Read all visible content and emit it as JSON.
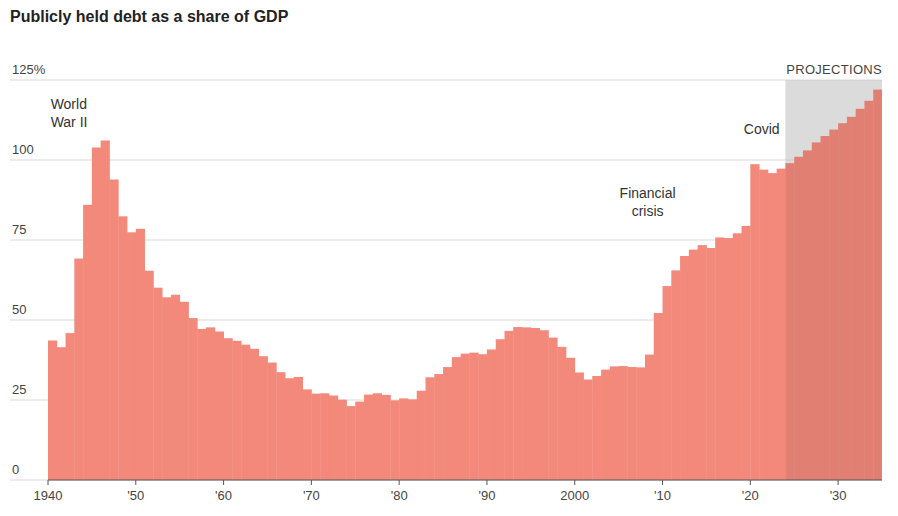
{
  "chart_data": {
    "type": "bar",
    "title": "Publicly held debt as a share of GDP",
    "x": [
      1940,
      1941,
      1942,
      1943,
      1944,
      1945,
      1946,
      1947,
      1948,
      1949,
      1950,
      1951,
      1952,
      1953,
      1954,
      1955,
      1956,
      1957,
      1958,
      1959,
      1960,
      1961,
      1962,
      1963,
      1964,
      1965,
      1966,
      1967,
      1968,
      1969,
      1970,
      1971,
      1972,
      1973,
      1974,
      1975,
      1976,
      1977,
      1978,
      1979,
      1980,
      1981,
      1982,
      1983,
      1984,
      1985,
      1986,
      1987,
      1988,
      1989,
      1990,
      1991,
      1992,
      1993,
      1994,
      1995,
      1996,
      1997,
      1998,
      1999,
      2000,
      2001,
      2002,
      2003,
      2004,
      2005,
      2006,
      2007,
      2008,
      2009,
      2010,
      2011,
      2012,
      2013,
      2014,
      2015,
      2016,
      2017,
      2018,
      2019,
      2020,
      2021,
      2022,
      2023,
      2024,
      2025,
      2026,
      2027,
      2028,
      2029,
      2030,
      2031,
      2032,
      2033,
      2034
    ],
    "values": [
      43.6,
      41.5,
      45.9,
      69.2,
      86.0,
      103.9,
      106.1,
      93.9,
      82.4,
      77.4,
      78.5,
      65.4,
      60.1,
      57.1,
      57.9,
      55.7,
      50.6,
      47.2,
      47.7,
      46.4,
      44.3,
      43.5,
      42.3,
      41.0,
      38.7,
      36.7,
      33.7,
      31.8,
      32.2,
      28.3,
      27.0,
      27.1,
      26.4,
      25.1,
      23.1,
      24.5,
      26.7,
      27.1,
      26.6,
      24.9,
      25.5,
      25.2,
      27.9,
      32.1,
      33.1,
      35.3,
      38.4,
      39.5,
      39.8,
      39.3,
      40.8,
      44.0,
      46.6,
      47.8,
      47.7,
      47.5,
      46.8,
      44.5,
      41.6,
      38.2,
      33.6,
      31.4,
      32.5,
      34.5,
      35.5,
      35.6,
      35.3,
      35.2,
      39.2,
      52.2,
      60.6,
      65.5,
      70.0,
      72.0,
      73.4,
      72.5,
      75.8,
      75.6,
      77.1,
      79.4,
      98.7,
      97.0,
      95.9,
      97.3,
      99.0,
      101.0,
      103.0,
      105.5,
      107.5,
      109.5,
      111.5,
      113.5,
      116.0,
      118.5,
      122.0
    ],
    "color": "#f2897b",
    "xlim": [
      1940,
      2035
    ],
    "xticks": [
      1940,
      {
        "value": 1950,
        "label": "'50"
      },
      {
        "value": 1960,
        "label": "'60"
      },
      {
        "value": 1970,
        "label": "'70"
      },
      {
        "value": 1980,
        "label": "'80"
      },
      {
        "value": 1990,
        "label": "'90"
      },
      2000,
      {
        "value": 2010,
        "label": "'10"
      },
      {
        "value": 2020,
        "label": "'20"
      },
      {
        "value": 2030,
        "label": "'30"
      }
    ],
    "ylim": [
      0,
      125
    ],
    "yticks": [
      0,
      25,
      50,
      75,
      100,
      {
        "value": 125,
        "label": "125%"
      }
    ],
    "grid": true,
    "shaded_region": {
      "label": "PROJECTIONS",
      "from": 2024,
      "to": 2035
    },
    "annotations": [
      {
        "text": [
          "World",
          "War II"
        ],
        "x": 1940.3,
        "y": 116
      },
      {
        "text": [
          "Financial",
          "crisis"
        ],
        "x": 2008.3,
        "y": 88
      },
      {
        "text": [
          "Covid"
        ],
        "x": 2021.3,
        "y": 108
      }
    ]
  }
}
